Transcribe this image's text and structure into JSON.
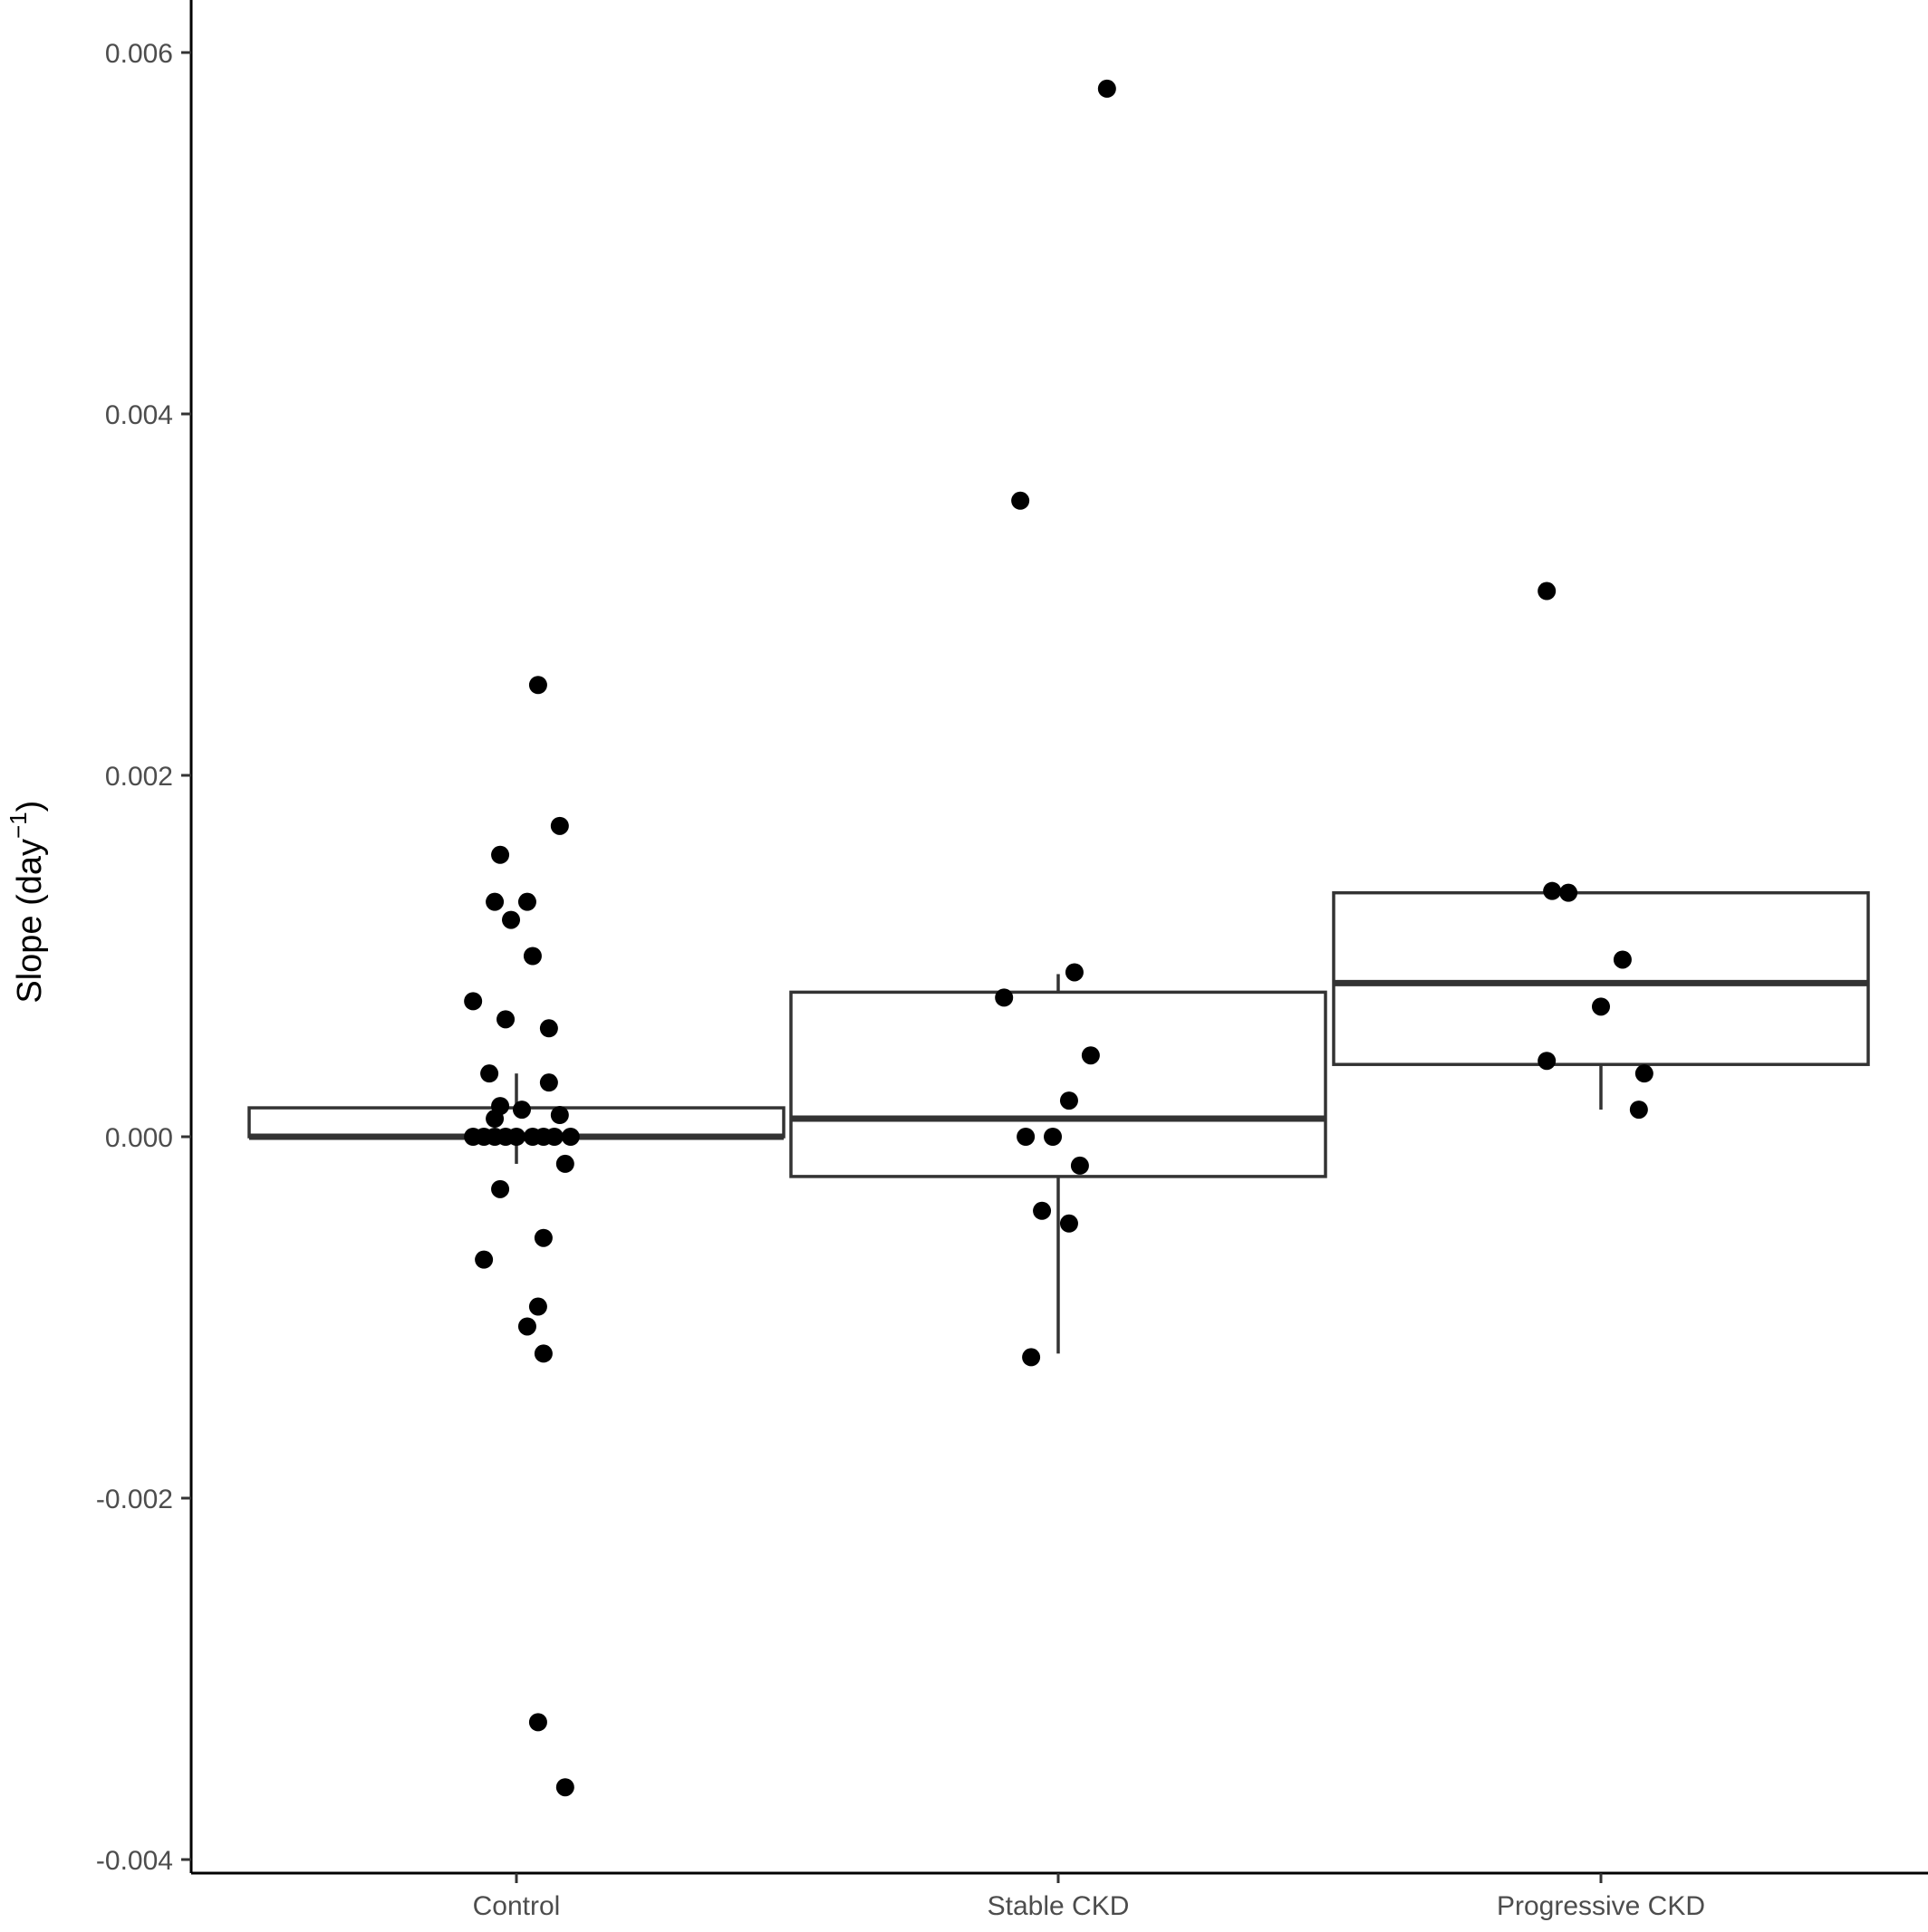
{
  "chart_data": {
    "type": "boxplot",
    "title": "",
    "xlabel": "",
    "ylabel": "Slope (day",
    "ylabel_superscript": "−1",
    "ylabel_suffix": ")",
    "ylim": [
      -0.0041,
      0.0062
    ],
    "yticks": [
      -0.004,
      -0.002,
      0.0,
      0.002,
      0.004,
      0.006
    ],
    "ytick_labels": [
      "-0.004",
      "-0.002",
      "0.000",
      "0.002",
      "0.004",
      "0.006"
    ],
    "categories": [
      "Control",
      "Stable CKD",
      "Progressive CKD"
    ],
    "grid": false,
    "legend": "none",
    "colors": {
      "points": "#000000",
      "box_stroke": "#333333",
      "axis": "#000000",
      "tick_label": "#4d4d4d"
    },
    "boxes": [
      {
        "category": "Control",
        "whisker_low": -0.00015,
        "q1": 0.0,
        "median": 0.0,
        "q3": 0.00016,
        "whisker_high": 0.00035
      },
      {
        "category": "Stable CKD",
        "whisker_low": -0.0012,
        "q1": -0.00022,
        "median": 0.0001,
        "q3": 0.0008,
        "whisker_high": 0.0009
      },
      {
        "category": "Progressive CKD",
        "whisker_low": 0.00015,
        "q1": 0.0004,
        "median": 0.00085,
        "q3": 0.00135,
        "whisker_high": 0.00135
      }
    ],
    "points": [
      {
        "category": "Control",
        "x": 0.04,
        "y": 0.0025
      },
      {
        "category": "Control",
        "x": 0.08,
        "y": 0.00172
      },
      {
        "category": "Control",
        "x": -0.03,
        "y": 0.00156
      },
      {
        "category": "Control",
        "x": -0.04,
        "y": 0.0013
      },
      {
        "category": "Control",
        "x": 0.02,
        "y": 0.0013
      },
      {
        "category": "Control",
        "x": -0.01,
        "y": 0.0012
      },
      {
        "category": "Control",
        "x": 0.03,
        "y": 0.001
      },
      {
        "category": "Control",
        "x": -0.08,
        "y": 0.00075
      },
      {
        "category": "Control",
        "x": -0.02,
        "y": 0.00065
      },
      {
        "category": "Control",
        "x": 0.06,
        "y": 0.0006
      },
      {
        "category": "Control",
        "x": -0.05,
        "y": 0.00035
      },
      {
        "category": "Control",
        "x": 0.06,
        "y": 0.0003
      },
      {
        "category": "Control",
        "x": -0.03,
        "y": 0.00017
      },
      {
        "category": "Control",
        "x": 0.01,
        "y": 0.00015
      },
      {
        "category": "Control",
        "x": 0.08,
        "y": 0.00012
      },
      {
        "category": "Control",
        "x": -0.04,
        "y": 0.0001
      },
      {
        "category": "Control",
        "x": -0.08,
        "y": 0.0
      },
      {
        "category": "Control",
        "x": -0.06,
        "y": 0.0
      },
      {
        "category": "Control",
        "x": -0.04,
        "y": 0.0
      },
      {
        "category": "Control",
        "x": -0.02,
        "y": 0.0
      },
      {
        "category": "Control",
        "x": 0.0,
        "y": 0.0
      },
      {
        "category": "Control",
        "x": 0.03,
        "y": 0.0
      },
      {
        "category": "Control",
        "x": 0.05,
        "y": 0.0
      },
      {
        "category": "Control",
        "x": 0.07,
        "y": 0.0
      },
      {
        "category": "Control",
        "x": 0.1,
        "y": 0.0
      },
      {
        "category": "Control",
        "x": 0.09,
        "y": -0.00015
      },
      {
        "category": "Control",
        "x": -0.03,
        "y": -0.00029
      },
      {
        "category": "Control",
        "x": 0.05,
        "y": -0.00056
      },
      {
        "category": "Control",
        "x": -0.06,
        "y": -0.00068
      },
      {
        "category": "Control",
        "x": 0.04,
        "y": -0.00094
      },
      {
        "category": "Control",
        "x": 0.02,
        "y": -0.00105
      },
      {
        "category": "Control",
        "x": 0.05,
        "y": -0.0012
      },
      {
        "category": "Control",
        "x": 0.04,
        "y": -0.00324
      },
      {
        "category": "Control",
        "x": 0.09,
        "y": -0.0036
      },
      {
        "category": "Stable CKD",
        "x": 0.09,
        "y": 0.0058
      },
      {
        "category": "Stable CKD",
        "x": -0.07,
        "y": 0.00352
      },
      {
        "category": "Stable CKD",
        "x": 0.03,
        "y": 0.00091
      },
      {
        "category": "Stable CKD",
        "x": -0.1,
        "y": 0.00077
      },
      {
        "category": "Stable CKD",
        "x": 0.06,
        "y": 0.00045
      },
      {
        "category": "Stable CKD",
        "x": 0.02,
        "y": 0.0002
      },
      {
        "category": "Stable CKD",
        "x": -0.06,
        "y": 0.0
      },
      {
        "category": "Stable CKD",
        "x": -0.01,
        "y": 0.0
      },
      {
        "category": "Stable CKD",
        "x": 0.04,
        "y": -0.00016
      },
      {
        "category": "Stable CKD",
        "x": -0.03,
        "y": -0.00041
      },
      {
        "category": "Stable CKD",
        "x": 0.02,
        "y": -0.00048
      },
      {
        "category": "Stable CKD",
        "x": -0.05,
        "y": -0.00122
      },
      {
        "category": "Progressive CKD",
        "x": -0.1,
        "y": 0.00302
      },
      {
        "category": "Progressive CKD",
        "x": -0.09,
        "y": 0.00136
      },
      {
        "category": "Progressive CKD",
        "x": -0.06,
        "y": 0.00135
      },
      {
        "category": "Progressive CKD",
        "x": 0.04,
        "y": 0.00098
      },
      {
        "category": "Progressive CKD",
        "x": 0.0,
        "y": 0.00072
      },
      {
        "category": "Progressive CKD",
        "x": -0.1,
        "y": 0.00042
      },
      {
        "category": "Progressive CKD",
        "x": 0.08,
        "y": 0.00035
      },
      {
        "category": "Progressive CKD",
        "x": 0.07,
        "y": 0.00015
      }
    ]
  }
}
